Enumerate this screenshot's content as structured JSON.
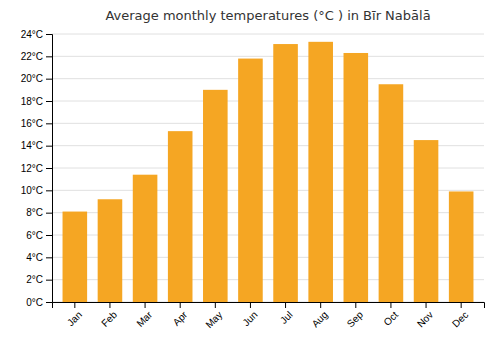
{
  "chart_data": {
    "type": "bar",
    "title": "Average monthly temperatures (°C ) in Bīr Nabālā",
    "categories": [
      "Jan",
      "Feb",
      "Mar",
      "Apr",
      "May",
      "Jun",
      "Jul",
      "Aug",
      "Sep",
      "Oct",
      "Nov",
      "Dec"
    ],
    "values": [
      8.1,
      9.2,
      11.4,
      15.3,
      19.0,
      21.8,
      23.1,
      23.3,
      22.3,
      19.5,
      14.5,
      9.9
    ],
    "color": "#F5A623",
    "ylim": [
      0,
      24
    ],
    "yticks": [
      {
        "value": 0,
        "label": "0°C"
      },
      {
        "value": 2,
        "label": "2°C"
      },
      {
        "value": 4,
        "label": "4°C"
      },
      {
        "value": 6,
        "label": "6°C"
      },
      {
        "value": 8,
        "label": "8°C"
      },
      {
        "value": 10,
        "label": "10°C"
      },
      {
        "value": 12,
        "label": "12°C"
      },
      {
        "value": 14,
        "label": "14°C"
      },
      {
        "value": 16,
        "label": "16°C"
      },
      {
        "value": 18,
        "label": "18°C"
      },
      {
        "value": 20,
        "label": "20°C"
      },
      {
        "value": 22,
        "label": "22°C"
      },
      {
        "value": 24,
        "label": "24°C"
      }
    ],
    "grid": true
  }
}
